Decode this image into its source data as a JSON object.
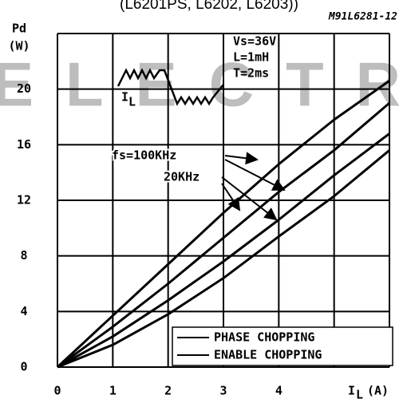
{
  "chart_data": {
    "type": "line",
    "title": "(L6201PS, L6202, L6203))",
    "code": "M91L6281-12",
    "watermark": "ELECTRONIC",
    "y_label": "Pd",
    "y_unit": "(W)",
    "x_label": "I",
    "x_label_sub": "L",
    "x_unit": "(A)",
    "x": [
      0,
      1,
      2,
      3,
      4,
      5,
      6
    ],
    "series": [
      {
        "color": "#000000",
        "values": [
          0,
          3.7,
          7.4,
          11.1,
          14.6,
          17.8,
          20.6
        ]
      },
      {
        "color": "#000000",
        "values": [
          0,
          2.9,
          6.0,
          9.3,
          12.6,
          15.6,
          19.0
        ]
      },
      {
        "color": "#000000",
        "values": [
          0,
          2.2,
          4.8,
          7.6,
          10.6,
          13.8,
          16.8
        ]
      },
      {
        "color": "#000000",
        "values": [
          0,
          1.6,
          3.8,
          6.4,
          9.4,
          12.3,
          15.6
        ]
      }
    ],
    "legend": [
      "PHASE CHOPPING",
      "ENABLE CHOPPING"
    ],
    "annotations": [
      "Vs=36V",
      "L=1mH",
      "T=2ms",
      "fs=100KHz",
      "20KHz"
    ],
    "inset_label": "I",
    "inset_label_sub": "L",
    "xlim": [
      0,
      6
    ],
    "ylim": [
      0,
      24
    ],
    "xticks": [
      0,
      1,
      2,
      3,
      4
    ],
    "yticks": [
      0,
      4,
      8,
      12,
      16,
      20
    ],
    "xgrid": [
      0,
      1,
      2,
      3,
      4,
      5,
      6
    ],
    "ygrid": [
      0,
      4,
      8,
      12,
      16,
      20,
      24
    ]
  }
}
